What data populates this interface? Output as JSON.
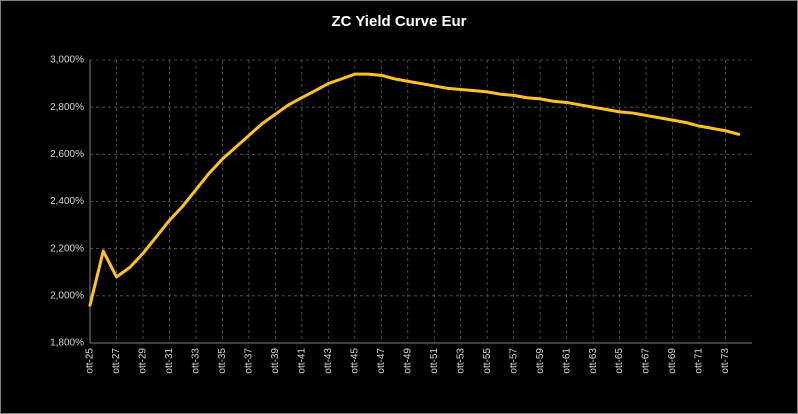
{
  "chart_data": {
    "type": "line",
    "title": "ZC Yield Curve Eur",
    "categories": [
      "ott-25",
      null,
      "ott-27",
      null,
      "ott-29",
      null,
      "ott-31",
      null,
      "ott-33",
      null,
      "ott-35",
      null,
      "ott-37",
      null,
      "ott-39",
      null,
      "ott-41",
      null,
      "ott-43",
      null,
      "ott-45",
      null,
      "ott-47",
      null,
      "ott-49",
      null,
      "ott-51",
      null,
      "ott-53",
      null,
      "ott-55",
      null,
      "ott-57",
      null,
      "ott-59",
      null,
      "ott-61",
      null,
      "ott-63",
      null,
      "ott-65",
      null,
      "ott-67",
      null,
      "ott-69",
      null,
      "ott-71",
      null,
      "ott-73",
      null
    ],
    "series": [
      {
        "name": "ZC Yield Curve Eur",
        "color": "#ffc125",
        "values": [
          1.96,
          2.19,
          2.08,
          2.12,
          2.18,
          2.25,
          2.32,
          2.38,
          2.45,
          2.52,
          2.58,
          2.63,
          2.68,
          2.73,
          2.77,
          2.81,
          2.84,
          2.87,
          2.9,
          2.92,
          2.94,
          2.94,
          2.935,
          2.92,
          2.91,
          2.9,
          2.89,
          2.88,
          2.875,
          2.87,
          2.865,
          2.855,
          2.85,
          2.84,
          2.835,
          2.825,
          2.82,
          2.81,
          2.8,
          2.79,
          2.78,
          2.775,
          2.765,
          2.755,
          2.745,
          2.735,
          2.72,
          2.71,
          2.7,
          2.685
        ]
      }
    ],
    "ylim": [
      1.8,
      3.0
    ],
    "yticks": [
      {
        "value": 1.8,
        "label": "1,800%"
      },
      {
        "value": 2.0,
        "label": "2,000%"
      },
      {
        "value": 2.2,
        "label": "2,200%"
      },
      {
        "value": 2.4,
        "label": "2,400%"
      },
      {
        "value": 2.6,
        "label": "2,600%"
      },
      {
        "value": 2.8,
        "label": "2,800%"
      },
      {
        "value": 3.0,
        "label": "3,000%"
      }
    ],
    "grid": true
  }
}
